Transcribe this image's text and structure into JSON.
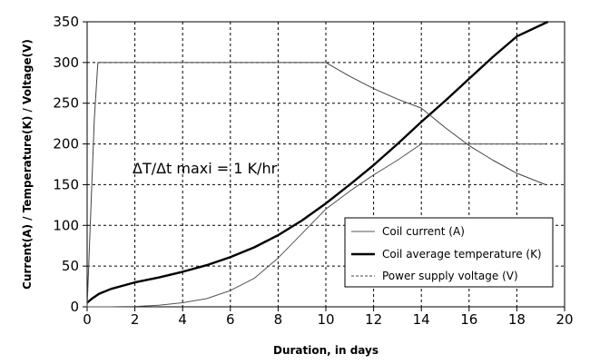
{
  "chart_data": {
    "type": "line",
    "title": "",
    "xlabel": "Duration, in days",
    "ylabel": "Current(A) / Temperature(K) / Voltage(V)",
    "xlim": [
      0,
      20
    ],
    "ylim": [
      0,
      350
    ],
    "xticks": [
      0,
      2,
      4,
      6,
      8,
      10,
      12,
      14,
      16,
      18,
      20
    ],
    "yticks": [
      0,
      50,
      100,
      150,
      200,
      250,
      300,
      350
    ],
    "grid": true,
    "legend_position": "bottom-right",
    "annotation": "ΔT/Δt maxi = 1 K/hr",
    "series": [
      {
        "name": "Coil current (A)",
        "color": "#555555",
        "style": "thin",
        "x": [
          0,
          0.5,
          1,
          2,
          3,
          4,
          5,
          6,
          7,
          8,
          9,
          10,
          11,
          12,
          13,
          14,
          15,
          16,
          17,
          18,
          19.2
        ],
        "y": [
          0,
          0,
          0,
          0.5,
          2,
          5,
          10,
          20,
          35,
          60,
          90,
          120,
          142,
          162,
          180,
          200,
          200,
          200,
          200,
          200,
          200
        ]
      },
      {
        "name": "Coil average temperature (K)",
        "color": "#000000",
        "style": "thick",
        "x": [
          0,
          0.2,
          0.5,
          1,
          2,
          3,
          4,
          5,
          6,
          7,
          8,
          9,
          10,
          11,
          12,
          13,
          14,
          15,
          16,
          17,
          18,
          19.3
        ],
        "y": [
          5,
          10,
          16,
          22,
          30,
          36,
          43,
          51,
          61,
          73,
          88,
          106,
          127,
          150,
          174,
          200,
          227,
          253,
          280,
          307,
          332,
          350
        ]
      },
      {
        "name": "Power supply voltage  (V)",
        "color": "#444444",
        "style": "thin",
        "x": [
          0,
          0.3,
          0.45,
          10,
          11,
          12,
          13,
          14,
          15,
          16,
          17,
          18,
          19.2
        ],
        "y": [
          0,
          230,
          300,
          300,
          283,
          268,
          255,
          244,
          220,
          198,
          180,
          164,
          150
        ]
      }
    ]
  }
}
